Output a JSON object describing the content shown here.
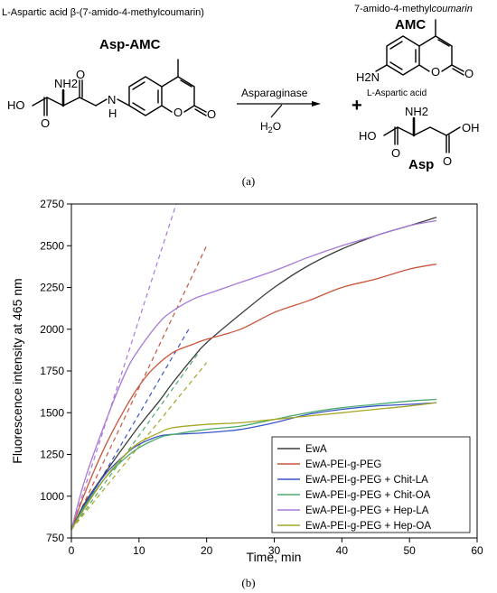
{
  "scheme": {
    "substrate_full_name": "L-Aspartic acid β-(7-amido-4-methylcoumarin)",
    "substrate_abbrev": "Asp-AMC",
    "enzyme": "Asparaginase",
    "water": "H2O",
    "product1_full_name_a": "7-amido-4-methyl",
    "product1_full_name_b": "coumarin",
    "product1_abbrev": "AMC",
    "plus": "+",
    "product2_full_name": "L-Aspartic acid",
    "product2_abbrev": "Asp",
    "atoms": {
      "ho": "HO",
      "nh2": "NH2",
      "n": "N",
      "h": "H",
      "o": "O",
      "h2n": "H2N",
      "oh": "OH"
    }
  },
  "labels": {
    "panel_a": "(a)",
    "panel_b": "(b)"
  },
  "chart_data": {
    "type": "line",
    "xlabel": "Time, min",
    "ylabel": "Fluorescence intensity at 465 nm",
    "xlim": [
      0,
      60
    ],
    "ylim": [
      750,
      2750
    ],
    "xticks": [
      0,
      10,
      20,
      30,
      40,
      50,
      60
    ],
    "yticks": [
      750,
      1000,
      1250,
      1500,
      1750,
      2000,
      2250,
      2500,
      2750
    ],
    "grid": false,
    "legend_position": "bottom-right",
    "series": [
      {
        "name": "EwA",
        "color": "#3d3d3d",
        "x": [
          0,
          2,
          5,
          8,
          10,
          13,
          15,
          18,
          20,
          25,
          30,
          35,
          40,
          45,
          50,
          54
        ],
        "y": [
          800,
          960,
          1140,
          1310,
          1420,
          1570,
          1680,
          1830,
          1920,
          2090,
          2250,
          2380,
          2480,
          2560,
          2620,
          2670
        ],
        "tangent": null
      },
      {
        "name": "EwA-PEI-g-PEG",
        "color": "#c8553b",
        "x": [
          0,
          2,
          5,
          8,
          10,
          12,
          15,
          18,
          20,
          25,
          30,
          35,
          40,
          45,
          50,
          54
        ],
        "y": [
          800,
          1020,
          1300,
          1530,
          1660,
          1760,
          1860,
          1910,
          1940,
          2000,
          2100,
          2170,
          2250,
          2300,
          2360,
          2390
        ],
        "tangent": {
          "x": [
            0,
            20
          ],
          "y": [
            800,
            2500
          ]
        }
      },
      {
        "name": "EwA-PEI-g-PEG + Chit-LA",
        "color": "#3a55c8",
        "x": [
          0,
          2,
          5,
          8,
          10,
          13,
          15,
          20,
          25,
          30,
          35,
          40,
          45,
          50,
          54
        ],
        "y": [
          800,
          950,
          1130,
          1250,
          1310,
          1360,
          1370,
          1380,
          1400,
          1440,
          1490,
          1520,
          1540,
          1550,
          1560
        ],
        "tangent": {
          "x": [
            0,
            17.5
          ],
          "y": [
            800,
            2010
          ]
        }
      },
      {
        "name": "EwA-PEI-g-PEG + Chit-OA",
        "color": "#4caa70",
        "x": [
          0,
          2,
          5,
          8,
          10,
          13,
          15,
          20,
          25,
          30,
          35,
          40,
          45,
          50,
          54
        ],
        "y": [
          800,
          940,
          1110,
          1230,
          1290,
          1350,
          1370,
          1400,
          1420,
          1460,
          1500,
          1530,
          1550,
          1570,
          1580
        ],
        "tangent": {
          "x": [
            0,
            19
          ],
          "y": [
            800,
            1870
          ]
        }
      },
      {
        "name": "EwA-PEI-g-PEG + Hep-LA",
        "color": "#a779d8",
        "x": [
          0,
          2,
          5,
          8,
          10,
          13,
          15,
          18,
          20,
          25,
          30,
          35,
          40,
          45,
          50,
          54
        ],
        "y": [
          800,
          1100,
          1440,
          1740,
          1880,
          2040,
          2110,
          2180,
          2210,
          2280,
          2350,
          2430,
          2500,
          2560,
          2620,
          2650
        ],
        "tangent": {
          "x": [
            0,
            15.5
          ],
          "y": [
            800,
            2750
          ]
        }
      },
      {
        "name": "EwA-PEI-g-PEG + Hep-OA",
        "color": "#a7a625",
        "x": [
          0,
          2,
          5,
          8,
          10,
          13,
          15,
          20,
          25,
          30,
          35,
          40,
          45,
          50,
          54
        ],
        "y": [
          800,
          930,
          1110,
          1250,
          1320,
          1380,
          1410,
          1430,
          1440,
          1460,
          1480,
          1500,
          1520,
          1540,
          1560
        ],
        "tangent": {
          "x": [
            0,
            20
          ],
          "y": [
            800,
            1800
          ]
        }
      }
    ]
  }
}
